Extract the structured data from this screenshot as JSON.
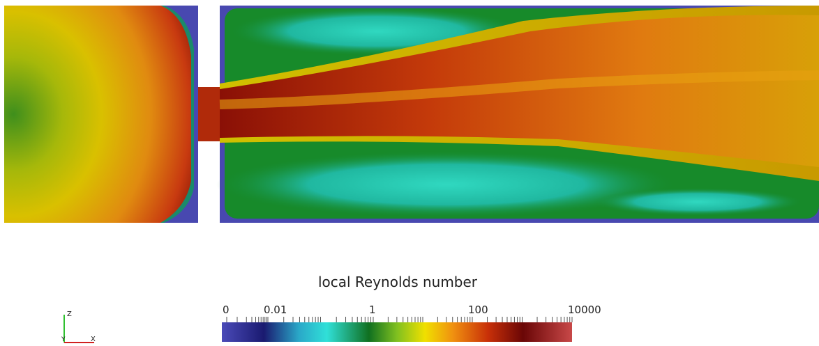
{
  "colorbar": {
    "title": "local Reynolds number",
    "tick_labels": [
      "0",
      "0.01",
      "1",
      "100",
      "10000"
    ]
  },
  "axes_triad": {
    "z": "Z",
    "y": "Y",
    "x": "X"
  }
}
